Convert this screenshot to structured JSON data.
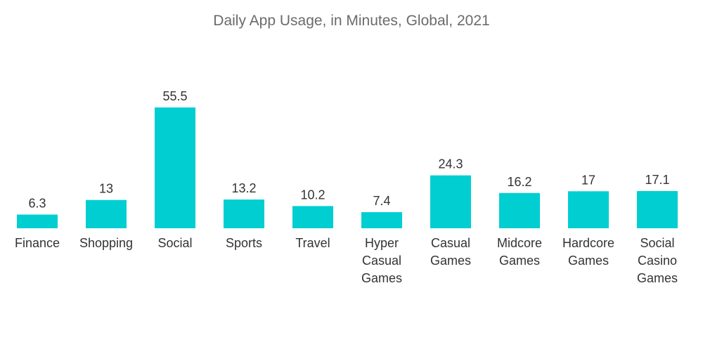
{
  "chart_data": {
    "type": "bar",
    "title": "Daily App Usage, in Minutes, Global, 2021",
    "xlabel": "",
    "ylabel": "",
    "categories": [
      "Finance",
      "Shopping",
      "Social",
      "Sports",
      "Travel",
      "Hyper Casual Games",
      "Casual Games",
      "Midcore Games",
      "Hardcore Games",
      "Social Casino Games"
    ],
    "category_lines": [
      [
        "Finance"
      ],
      [
        "Shopping"
      ],
      [
        "Social"
      ],
      [
        "Sports"
      ],
      [
        "Travel"
      ],
      [
        "Hyper",
        "Casual",
        "Games"
      ],
      [
        "Casual",
        "Games"
      ],
      [
        "Midcore",
        "Games"
      ],
      [
        "Hardcore",
        "Games"
      ],
      [
        "Social",
        "Casino",
        "Games"
      ]
    ],
    "values": [
      6.3,
      13,
      55.5,
      13.2,
      10.2,
      7.4,
      24.3,
      16.2,
      17,
      17.1
    ],
    "value_labels": [
      "6.3",
      "13",
      "55.5",
      "13.2",
      "10.2",
      "7.4",
      "24.3",
      "16.2",
      "17",
      "17.1"
    ],
    "ylim": [
      0,
      55.5
    ],
    "grid": false,
    "legend": "none",
    "bar_color": "#00ced1"
  }
}
